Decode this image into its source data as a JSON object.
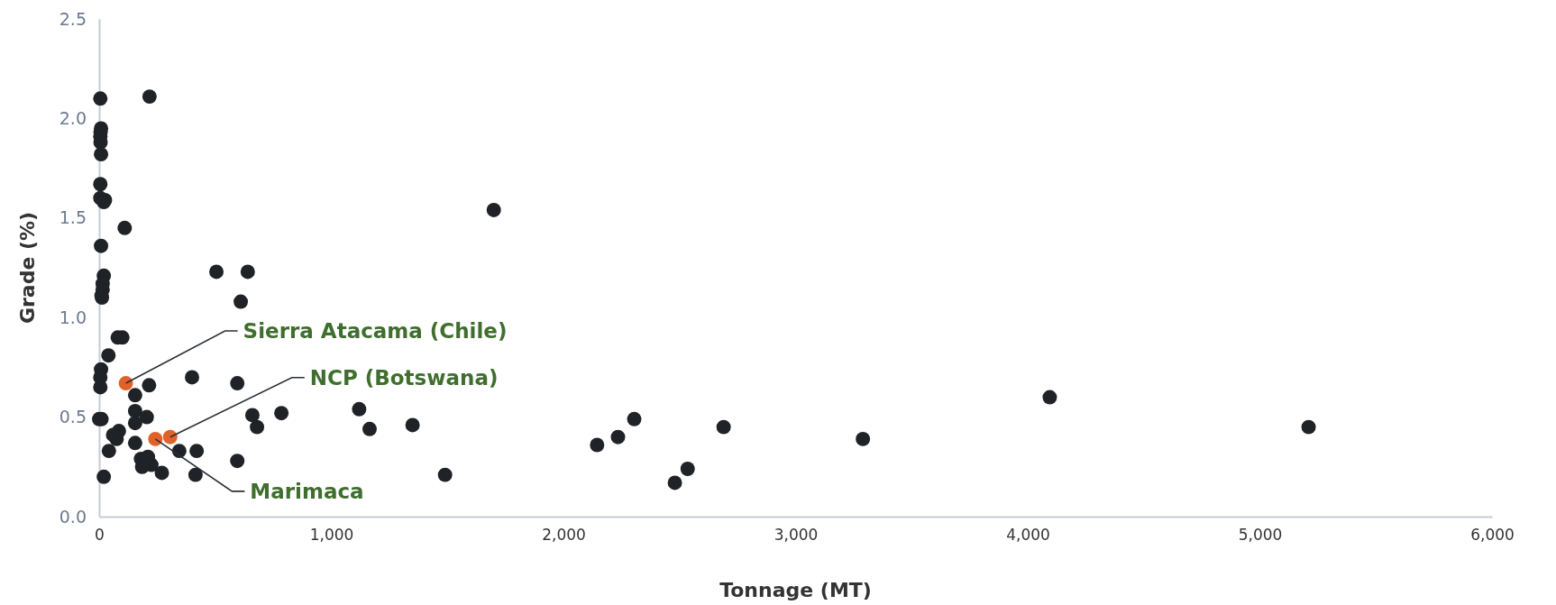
{
  "chart_data": {
    "type": "scatter",
    "xlabel": "Tonnage (MT)",
    "ylabel": "Grade (%)",
    "xlim": [
      0,
      6000
    ],
    "ylim": [
      0,
      2.5
    ],
    "xticks": [
      0,
      {
        "value": 1000,
        "label": "1,000"
      },
      {
        "value": 2000,
        "label": "2,000"
      },
      {
        "value": 3000,
        "label": "3,000"
      },
      {
        "value": 4000,
        "label": "4,000"
      },
      {
        "value": 5000,
        "label": "5,000"
      },
      {
        "value": 6000,
        "label": "6,000"
      }
    ],
    "yticks": [
      {
        "value": 0,
        "label": "0.0"
      },
      0.5,
      {
        "value": 1,
        "label": "1.0"
      },
      1.5,
      {
        "value": 2,
        "label": "2.0"
      },
      2.5
    ],
    "grid": false,
    "marker": "circle",
    "series": [
      {
        "color": "#1f2227",
        "x": [
          5,
          8,
          6,
          5,
          6,
          8,
          5,
          5,
          25,
          20,
          8,
          20,
          15,
          15,
          10,
          12,
          40,
          8,
          5,
          5,
          0,
          10,
          20,
          217,
          110,
          80,
          100,
          1700,
          505,
          640,
          610,
          215,
          400,
          595,
          155,
          155,
          205,
          155,
          85,
          60,
          75,
          42,
          155,
          180,
          210,
          225,
          185,
          270,
          345,
          420,
          415,
          595,
          660,
          680,
          785,
          1120,
          1165,
          1350,
          1490,
          2145,
          2235,
          2305,
          2480,
          2535,
          2690,
          3290,
          4095,
          5210
        ],
        "values": [
          2.1,
          1.95,
          1.93,
          1.91,
          1.88,
          1.82,
          1.67,
          1.6,
          1.59,
          1.58,
          1.36,
          1.21,
          1.17,
          1.14,
          1.11,
          1.1,
          0.81,
          0.74,
          0.7,
          0.65,
          0.49,
          0.49,
          0.2,
          2.11,
          1.45,
          0.9,
          0.9,
          1.54,
          1.23,
          1.23,
          1.08,
          0.66,
          0.7,
          0.67,
          0.61,
          0.53,
          0.5,
          0.47,
          0.43,
          0.41,
          0.39,
          0.33,
          0.37,
          0.29,
          0.3,
          0.26,
          0.25,
          0.22,
          0.33,
          0.33,
          0.21,
          0.28,
          0.51,
          0.45,
          0.52,
          0.54,
          0.44,
          0.46,
          0.21,
          0.36,
          0.4,
          0.49,
          0.17,
          0.24,
          0.45,
          0.39,
          0.6,
          0.45
        ]
      },
      {
        "color": "#e0622a",
        "x": [
          115,
          242,
          306
        ],
        "values": [
          0.67,
          0.39,
          0.4
        ]
      }
    ],
    "annotations": [
      {
        "text": "Sierra Atacama (Chile)",
        "x": 115,
        "y": 0.67
      },
      {
        "text": "NCP (Botswana)",
        "x": 306,
        "y": 0.4
      },
      {
        "text": "Marimaca",
        "x": 242,
        "y": 0.39
      }
    ]
  }
}
